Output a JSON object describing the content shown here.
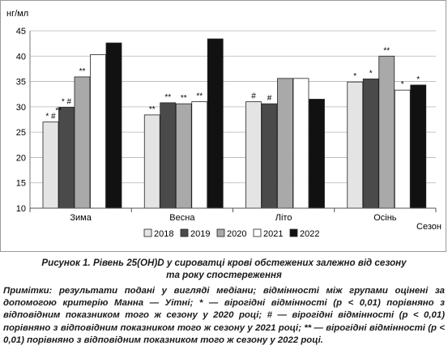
{
  "chart_data": {
    "type": "bar",
    "ylabel": "нг/мл",
    "xlabel": "Сезон",
    "ylim": [
      10,
      45
    ],
    "yticks": [
      10,
      15,
      20,
      25,
      30,
      35,
      40,
      45
    ],
    "grid": true,
    "legend_position": "bottom",
    "categories": [
      "Зима",
      "Весна",
      "Літо",
      "Осінь"
    ],
    "series": [
      {
        "name": "2018",
        "color": "#e4e4e4",
        "values": [
          27.0,
          28.4,
          31.0,
          34.9
        ],
        "marks": [
          "* #",
          "**",
          "#",
          "*"
        ]
      },
      {
        "name": "2019",
        "color": "#4a4a4a",
        "values": [
          29.9,
          30.8,
          30.6,
          35.5
        ],
        "marks": [
          "* #",
          "**",
          "#",
          "*"
        ]
      },
      {
        "name": "2020",
        "color": "#a9a9a9",
        "values": [
          35.9,
          30.6,
          35.6,
          40.0
        ],
        "marks": [
          "**",
          "**",
          "",
          "**"
        ]
      },
      {
        "name": "2021",
        "color": "#ffffff",
        "values": [
          40.3,
          31.0,
          35.6,
          33.3
        ],
        "marks": [
          "",
          "**",
          "",
          "*"
        ]
      },
      {
        "name": "2022",
        "color": "#111111",
        "values": [
          42.6,
          43.4,
          31.5,
          34.3
        ],
        "marks": [
          "",
          "",
          "",
          "*"
        ]
      }
    ],
    "row_marks": [
      "**",
      "",
      "",
      ""
    ]
  },
  "caption": {
    "line1": "Рисунок 1. Рівень 25(OH)D у сироватці крові обстежених залежно від сезону",
    "line2": "та року спостереження"
  },
  "note": "Примітки: результати подані у вигляді медіани; відмінності між групами оцінені за допомогою критерію Манна — Уітні; * — вірогідні відмінності (р < 0,01) порівняно з відповідним показником того ж сезону у 2020 році; # — вірогідні відмінності (р < 0,01) порівняно з відповідним показником того ж сезону у 2021 році; ** — вірогідні відмінності (р < 0,01) порівняно з відповідним показником того ж сезону у 2022 році."
}
